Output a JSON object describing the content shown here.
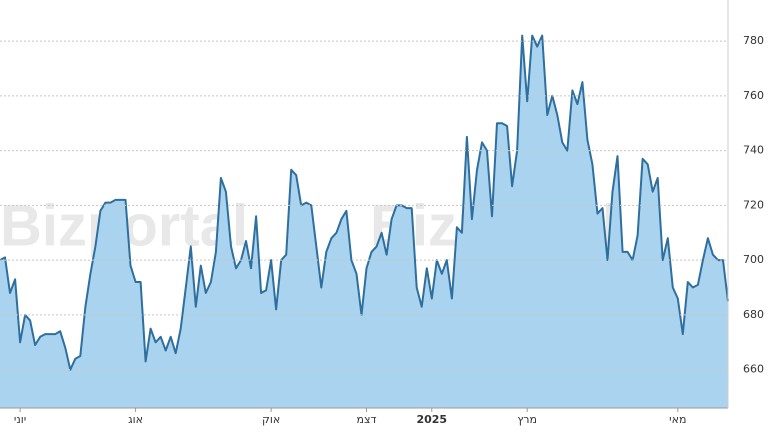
{
  "watermark": "Bizportal",
  "chart_data": {
    "type": "area",
    "categories": [
      null,
      null,
      null,
      null,
      "יוני",
      null,
      null,
      null,
      null,
      null,
      null,
      null,
      null,
      null,
      null,
      null,
      null,
      null,
      null,
      null,
      null,
      null,
      null,
      null,
      null,
      null,
      null,
      "אוג",
      null,
      null,
      null,
      null,
      null,
      null,
      null,
      null,
      null,
      null,
      null,
      null,
      null,
      null,
      null,
      null,
      null,
      null,
      null,
      null,
      null,
      null,
      null,
      null,
      null,
      null,
      "אוק",
      null,
      null,
      null,
      null,
      null,
      null,
      null,
      null,
      null,
      null,
      null,
      null,
      null,
      null,
      null,
      null,
      null,
      null,
      "דצמ",
      null,
      null,
      null,
      null,
      null,
      null,
      null,
      null,
      null,
      null,
      null,
      null,
      "2025",
      null,
      null,
      null,
      null,
      null,
      null,
      null,
      null,
      null,
      null,
      null,
      null,
      null,
      null,
      null,
      null,
      null,
      null,
      "מרץ",
      null,
      null,
      null,
      null,
      null,
      null,
      null,
      null,
      null,
      null,
      null,
      null,
      null,
      null,
      null,
      null,
      null,
      null,
      null,
      null,
      null,
      null,
      null,
      null,
      null,
      null,
      null,
      null,
      null,
      "מאי",
      null,
      null,
      null,
      null,
      null,
      null,
      null,
      null,
      null,
      null
    ],
    "values": [
      700,
      701,
      688,
      693,
      670,
      680,
      678,
      669,
      672,
      673,
      673,
      673,
      674,
      668,
      660,
      664,
      665,
      683,
      695,
      705,
      718,
      721,
      721,
      722,
      722,
      722,
      698,
      692,
      692,
      663,
      675,
      670,
      672,
      667,
      672,
      666,
      675,
      690,
      705,
      683,
      698,
      688,
      692,
      703,
      730,
      725,
      705,
      697,
      700,
      707,
      697,
      716,
      688,
      689,
      700,
      682,
      700,
      702,
      733,
      731,
      720,
      721,
      720,
      705,
      690,
      703,
      708,
      710,
      715,
      718,
      700,
      695,
      680,
      697,
      703,
      705,
      710,
      702,
      715,
      720,
      720,
      719,
      719,
      690,
      683,
      697,
      686,
      700,
      695,
      700,
      686,
      712,
      710,
      745,
      715,
      733,
      743,
      740,
      716,
      750,
      750,
      749,
      727,
      740,
      782,
      758,
      782,
      778,
      782,
      753,
      760,
      753,
      743,
      740,
      762,
      757,
      765,
      744,
      735,
      717,
      719,
      700,
      725,
      738,
      703,
      703,
      700,
      709,
      737,
      735,
      725,
      730,
      700,
      708,
      690,
      686,
      673,
      692,
      690,
      691,
      700,
      708,
      702,
      700,
      700,
      685
    ],
    "color": "#2e6f9e",
    "fill": "#a9d3ef",
    "ylim": [
      646,
      795
    ],
    "yticks": [
      660,
      680,
      700,
      720,
      740,
      760,
      780
    ],
    "grid": true
  }
}
